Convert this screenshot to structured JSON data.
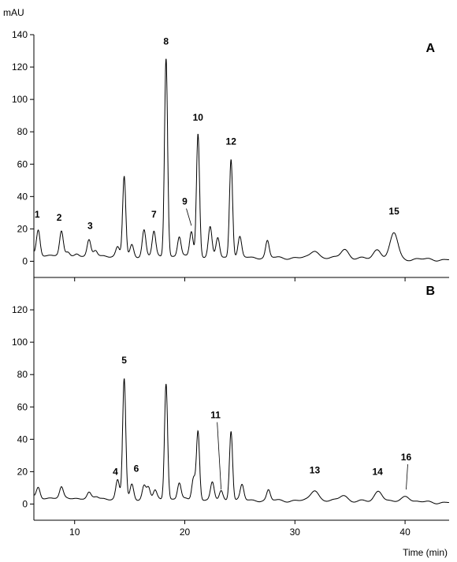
{
  "chart_data": {
    "type": "line",
    "ylabel": "mAU",
    "xlabel": "Time (min)",
    "xlim": [
      6.3,
      44
    ],
    "x_ticks": [
      10,
      20,
      30,
      40
    ],
    "colors": {
      "trace": "#000000",
      "axis": "#000000"
    },
    "panels": [
      {
        "label": "A",
        "ylim": [
          -10,
          140
        ],
        "y_ticks": [
          0,
          20,
          40,
          60,
          80,
          100,
          120,
          140
        ],
        "baseline": 4,
        "peaks": [
          {
            "x": 6.7,
            "y": 19,
            "label": "1"
          },
          {
            "x": 8.8,
            "y": 18,
            "label": "2"
          },
          {
            "x": 9.4,
            "y": 6
          },
          {
            "x": 10.2,
            "y": 5
          },
          {
            "x": 11.3,
            "y": 13,
            "label": "3"
          },
          {
            "x": 11.9,
            "y": 7
          },
          {
            "x": 13.9,
            "y": 9
          },
          {
            "x": 14.5,
            "y": 53
          },
          {
            "x": 15.2,
            "y": 11
          },
          {
            "x": 16.3,
            "y": 20
          },
          {
            "x": 17.2,
            "y": 19,
            "label": "7"
          },
          {
            "x": 18.3,
            "y": 127,
            "label": "8"
          },
          {
            "x": 19.5,
            "y": 16
          },
          {
            "x": 20.6,
            "y": 20,
            "label": "9"
          },
          {
            "x": 21.2,
            "y": 80,
            "label": "10"
          },
          {
            "x": 22.3,
            "y": 22
          },
          {
            "x": 23.0,
            "y": 16
          },
          {
            "x": 24.2,
            "y": 65,
            "label": "12"
          },
          {
            "x": 25.0,
            "y": 16
          },
          {
            "x": 27.5,
            "y": 14
          },
          {
            "x": 31.8,
            "y": 9
          },
          {
            "x": 34.5,
            "y": 10
          },
          {
            "x": 37.5,
            "y": 10
          },
          {
            "x": 39.0,
            "y": 20,
            "label": "15"
          }
        ],
        "annotations": [
          {
            "text": "1",
            "x": 6.6,
            "y": 27
          },
          {
            "text": "2",
            "x": 8.6,
            "y": 25
          },
          {
            "text": "3",
            "x": 11.4,
            "y": 20
          },
          {
            "text": "7",
            "x": 17.2,
            "y": 27
          },
          {
            "text": "8",
            "x": 18.3,
            "y": 134
          },
          {
            "text": "9",
            "x": 20.0,
            "y": 35,
            "line_to": [
              20.6,
              22
            ]
          },
          {
            "text": "10",
            "x": 21.2,
            "y": 87
          },
          {
            "text": "12",
            "x": 24.2,
            "y": 72
          },
          {
            "text": "15",
            "x": 39.0,
            "y": 29
          }
        ]
      },
      {
        "label": "B",
        "ylim": [
          -10,
          140
        ],
        "y_ticks": [
          0,
          20,
          40,
          60,
          80,
          100,
          120
        ],
        "baseline": 4,
        "peaks": [
          {
            "x": 6.7,
            "y": 10
          },
          {
            "x": 8.8,
            "y": 10
          },
          {
            "x": 11.3,
            "y": 7
          },
          {
            "x": 12.0,
            "y": 5
          },
          {
            "x": 13.9,
            "y": 15,
            "label": "4"
          },
          {
            "x": 14.5,
            "y": 78,
            "label": "5"
          },
          {
            "x": 15.2,
            "y": 13,
            "label": "6"
          },
          {
            "x": 16.3,
            "y": 12
          },
          {
            "x": 16.7,
            "y": 11
          },
          {
            "x": 17.3,
            "y": 9
          },
          {
            "x": 18.3,
            "y": 76
          },
          {
            "x": 19.5,
            "y": 14
          },
          {
            "x": 20.8,
            "y": 18
          },
          {
            "x": 21.2,
            "y": 46
          },
          {
            "x": 22.5,
            "y": 14
          },
          {
            "x": 23.3,
            "y": 10,
            "label": "11"
          },
          {
            "x": 24.2,
            "y": 47
          },
          {
            "x": 25.2,
            "y": 13
          },
          {
            "x": 27.6,
            "y": 10
          },
          {
            "x": 31.8,
            "y": 11,
            "label": "13"
          },
          {
            "x": 34.4,
            "y": 8
          },
          {
            "x": 37.6,
            "y": 11,
            "label": "14"
          },
          {
            "x": 40.1,
            "y": 8,
            "label": "16"
          }
        ],
        "annotations": [
          {
            "text": "4",
            "x": 13.7,
            "y": 18
          },
          {
            "text": "5",
            "x": 14.5,
            "y": 87
          },
          {
            "text": "6",
            "x": 15.6,
            "y": 20
          },
          {
            "text": "11",
            "x": 22.8,
            "y": 53,
            "line_to": [
              23.3,
              9
            ]
          },
          {
            "text": "13",
            "x": 31.8,
            "y": 19
          },
          {
            "text": "14",
            "x": 37.5,
            "y": 18
          },
          {
            "text": "16",
            "x": 40.1,
            "y": 27,
            "line_to": [
              40.1,
              9
            ]
          }
        ]
      }
    ]
  }
}
